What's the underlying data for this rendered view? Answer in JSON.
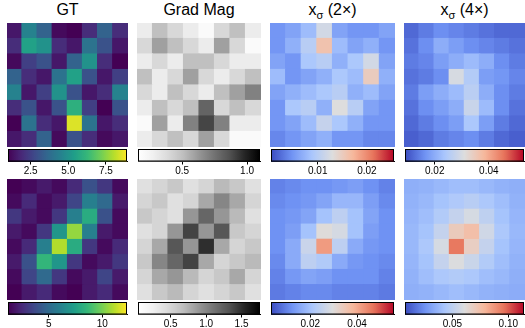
{
  "chart_data": [
    {
      "type": "heatmap",
      "title": "GT",
      "color": "viridis",
      "tick_labels": false,
      "cells": [
        [
          1.5,
          4.5,
          3.5,
          1.2,
          1.0,
          2.0,
          3.5,
          2.0
        ],
        [
          2.0,
          5.5,
          5.0,
          2.0,
          1.5,
          4.0,
          3.0,
          1.5
        ],
        [
          1.2,
          2.5,
          3.0,
          1.5,
          3.5,
          5.0,
          2.0,
          1.0
        ],
        [
          3.5,
          2.0,
          1.5,
          4.0,
          5.5,
          3.0,
          1.5,
          2.5
        ],
        [
          4.5,
          1.5,
          2.5,
          5.0,
          3.0,
          1.5,
          2.0,
          4.5
        ],
        [
          2.0,
          3.0,
          1.5,
          3.0,
          6.0,
          2.5,
          1.0,
          3.0
        ],
        [
          1.0,
          4.0,
          2.0,
          1.5,
          8.5,
          4.0,
          1.5,
          2.0
        ],
        [
          1.5,
          2.0,
          3.5,
          1.2,
          3.0,
          2.0,
          1.2,
          1.5
        ]
      ],
      "colorbar": {
        "range": [
          1.0,
          8.9
        ],
        "ticks": [
          2.5,
          {
            "value": 5,
            "label": "5.0"
          },
          7.5
        ]
      }
    },
    {
      "type": "heatmap",
      "title": "Grad Mag",
      "color": "Greys",
      "tick_labels": false,
      "cells": [
        [
          0.3,
          0.5,
          0.4,
          0.3,
          0.2,
          0.4,
          0.5,
          0.3
        ],
        [
          0.4,
          0.6,
          0.5,
          0.4,
          0.3,
          0.6,
          0.4,
          0.2
        ],
        [
          0.3,
          0.4,
          0.3,
          0.5,
          0.5,
          0.4,
          0.3,
          0.3
        ],
        [
          0.5,
          0.3,
          0.4,
          0.6,
          0.4,
          0.3,
          0.4,
          0.5
        ],
        [
          0.4,
          0.3,
          0.5,
          0.4,
          0.3,
          0.5,
          0.6,
          0.7
        ],
        [
          0.3,
          0.5,
          0.4,
          0.5,
          0.8,
          0.4,
          0.5,
          0.4
        ],
        [
          0.2,
          0.6,
          0.3,
          0.7,
          0.9,
          0.7,
          0.3,
          0.3
        ],
        [
          0.3,
          0.4,
          0.5,
          0.4,
          0.6,
          0.4,
          0.2,
          0.2
        ]
      ],
      "colorbar": {
        "range": [
          0.16,
          1.1
        ],
        "ticks": [
          0.5,
          {
            "value": 1,
            "label": "1.0"
          }
        ]
      }
    },
    {
      "type": "heatmap",
      "title": {
        "text": "x",
        "subscript": "σ",
        "after": " (2×)"
      },
      "color": "coolwarm",
      "tick_labels": false,
      "cells": [
        [
          0.005,
          0.006,
          0.008,
          0.012,
          0.006,
          0.005,
          0.005,
          0.006
        ],
        [
          0.005,
          0.007,
          0.01,
          0.016,
          0.008,
          0.006,
          0.007,
          0.005
        ],
        [
          0.006,
          0.005,
          0.009,
          0.01,
          0.007,
          0.009,
          0.012,
          0.006
        ],
        [
          0.008,
          0.005,
          0.006,
          0.007,
          0.009,
          0.008,
          0.015,
          0.007
        ],
        [
          0.006,
          0.007,
          0.008,
          0.009,
          0.01,
          0.007,
          0.008,
          0.006
        ],
        [
          0.005,
          0.009,
          0.01,
          0.007,
          0.013,
          0.01,
          0.006,
          0.005
        ],
        [
          0.005,
          0.006,
          0.008,
          0.011,
          0.009,
          0.007,
          0.005,
          0.005
        ],
        [
          0.004,
          0.005,
          0.006,
          0.007,
          0.005,
          0.005,
          0.004,
          0.004
        ]
      ],
      "colorbar": {
        "range": [
          0.0005,
          0.0255
        ],
        "ticks": [
          0.01,
          0.02
        ]
      }
    },
    {
      "type": "heatmap",
      "title": {
        "text": "x",
        "subscript": "σ",
        "after": " (4×)"
      },
      "color": "coolwarm",
      "tick_labels": false,
      "cells": [
        [
          0.012,
          0.014,
          0.016,
          0.015,
          0.014,
          0.013,
          0.012,
          0.012
        ],
        [
          0.013,
          0.016,
          0.02,
          0.018,
          0.016,
          0.015,
          0.014,
          0.013
        ],
        [
          0.014,
          0.015,
          0.018,
          0.02,
          0.022,
          0.02,
          0.016,
          0.014
        ],
        [
          0.013,
          0.014,
          0.016,
          0.03,
          0.025,
          0.018,
          0.017,
          0.015
        ],
        [
          0.014,
          0.018,
          0.02,
          0.022,
          0.026,
          0.02,
          0.016,
          0.014
        ],
        [
          0.013,
          0.016,
          0.018,
          0.02,
          0.028,
          0.022,
          0.016,
          0.013
        ],
        [
          0.012,
          0.014,
          0.016,
          0.018,
          0.024,
          0.018,
          0.014,
          0.012
        ],
        [
          0.011,
          0.012,
          0.014,
          0.015,
          0.016,
          0.014,
          0.012,
          0.011
        ]
      ],
      "colorbar": {
        "range": [
          0.009,
          0.053
        ],
        "ticks": [
          0.02,
          0.04
        ]
      }
    },
    {
      "type": "heatmap",
      "color": "viridis",
      "tick_labels": false,
      "cells": [
        [
          1.2,
          1.5,
          2.0,
          1.5,
          2.5,
          4.0,
          3.0,
          1.5
        ],
        [
          1.5,
          2.5,
          1.5,
          2.0,
          3.5,
          6.0,
          5.0,
          2.0
        ],
        [
          3.0,
          2.0,
          1.5,
          3.0,
          6.0,
          8.0,
          4.0,
          1.5
        ],
        [
          2.0,
          1.5,
          3.0,
          7.0,
          10.5,
          6.0,
          2.0,
          1.5
        ],
        [
          1.5,
          2.5,
          6.0,
          11.0,
          8.0,
          3.0,
          1.5,
          2.5
        ],
        [
          2.0,
          4.0,
          8.5,
          7.0,
          3.0,
          1.5,
          2.0,
          3.0
        ],
        [
          1.5,
          3.5,
          5.0,
          3.0,
          1.5,
          2.0,
          3.5,
          2.0
        ],
        [
          1.2,
          2.0,
          2.5,
          1.5,
          1.2,
          2.0,
          2.5,
          1.5
        ]
      ],
      "colorbar": {
        "range": [
          1.2,
          12.3
        ],
        "ticks": [
          5,
          10
        ]
      }
    },
    {
      "type": "heatmap",
      "color": "Greys",
      "tick_labels": false,
      "cells": [
        [
          0.4,
          0.5,
          0.6,
          0.4,
          0.5,
          0.7,
          0.6,
          0.4
        ],
        [
          0.5,
          0.6,
          0.4,
          0.5,
          0.8,
          1.0,
          0.8,
          0.5
        ],
        [
          0.6,
          0.5,
          0.4,
          0.9,
          1.2,
          0.9,
          0.7,
          0.4
        ],
        [
          0.4,
          0.5,
          0.9,
          1.4,
          0.9,
          1.3,
          0.6,
          0.5
        ],
        [
          0.5,
          0.8,
          1.3,
          0.9,
          1.5,
          0.8,
          0.5,
          0.6
        ],
        [
          0.6,
          1.0,
          1.2,
          1.4,
          0.8,
          0.5,
          0.6,
          0.7
        ],
        [
          0.5,
          0.8,
          0.9,
          0.7,
          0.5,
          0.6,
          0.8,
          0.5
        ],
        [
          0.4,
          0.6,
          0.7,
          0.5,
          0.4,
          0.5,
          0.6,
          0.4
        ]
      ],
      "colorbar": {
        "range": [
          0.04,
          1.76
        ],
        "ticks": [
          0.5,
          {
            "value": 1,
            "label": "1.0"
          },
          1.5
        ]
      }
    },
    {
      "type": "heatmap",
      "color": "coolwarm",
      "tick_labels": false,
      "cells": [
        [
          0.01,
          0.011,
          0.012,
          0.012,
          0.013,
          0.014,
          0.012,
          0.01
        ],
        [
          0.011,
          0.012,
          0.013,
          0.015,
          0.018,
          0.018,
          0.014,
          0.011
        ],
        [
          0.012,
          0.013,
          0.015,
          0.02,
          0.024,
          0.02,
          0.015,
          0.012
        ],
        [
          0.012,
          0.014,
          0.02,
          0.03,
          0.028,
          0.02,
          0.014,
          0.012
        ],
        [
          0.012,
          0.016,
          0.026,
          0.042,
          0.024,
          0.016,
          0.013,
          0.012
        ],
        [
          0.011,
          0.016,
          0.024,
          0.022,
          0.016,
          0.013,
          0.012,
          0.011
        ],
        [
          0.01,
          0.013,
          0.015,
          0.014,
          0.012,
          0.012,
          0.012,
          0.01
        ],
        [
          0.009,
          0.01,
          0.011,
          0.011,
          0.01,
          0.01,
          0.01,
          0.009
        ]
      ],
      "colorbar": {
        "range": [
          0.0032,
          0.0558
        ],
        "ticks": [
          0.02,
          0.04
        ]
      }
    },
    {
      "type": "heatmap",
      "color": "coolwarm",
      "tick_labels": false,
      "cells": [
        [
          0.035,
          0.036,
          0.038,
          0.04,
          0.04,
          0.038,
          0.036,
          0.035
        ],
        [
          0.036,
          0.038,
          0.042,
          0.045,
          0.048,
          0.044,
          0.04,
          0.036
        ],
        [
          0.037,
          0.04,
          0.046,
          0.052,
          0.058,
          0.05,
          0.042,
          0.037
        ],
        [
          0.038,
          0.042,
          0.052,
          0.07,
          0.075,
          0.056,
          0.044,
          0.038
        ],
        [
          0.038,
          0.044,
          0.058,
          0.095,
          0.068,
          0.052,
          0.042,
          0.037
        ],
        [
          0.037,
          0.042,
          0.052,
          0.06,
          0.054,
          0.046,
          0.04,
          0.036
        ],
        [
          0.036,
          0.04,
          0.044,
          0.046,
          0.044,
          0.04,
          0.038,
          0.035
        ],
        [
          0.035,
          0.036,
          0.038,
          0.04,
          0.038,
          0.036,
          0.035,
          0.034
        ]
      ],
      "colorbar": {
        "range": [
          0.0076,
          0.114
        ],
        "ticks": [
          0.05,
          {
            "value": 0.1,
            "label": "0.10"
          }
        ]
      }
    }
  ]
}
